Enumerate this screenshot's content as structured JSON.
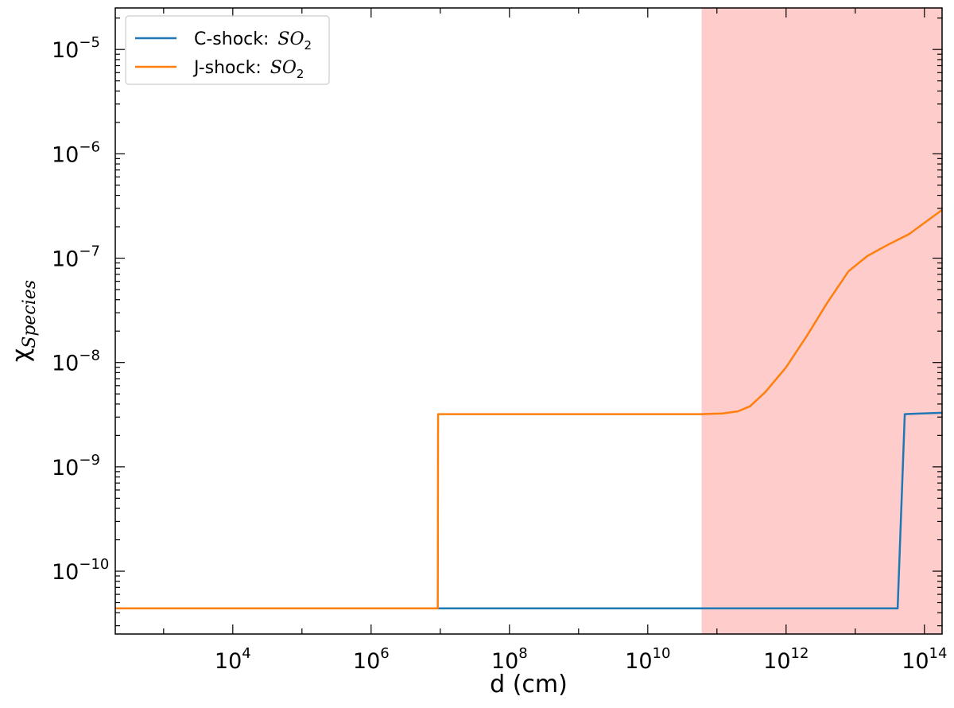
{
  "chart_data": {
    "type": "line",
    "xlabel": "d (cm)",
    "ylabel": {
      "base": "χ",
      "sub": "Species"
    },
    "xscale": "log",
    "yscale": "log",
    "xlim": [
      200,
      180000000000000.0
    ],
    "ylim": [
      2.5e-11,
      2.5e-05
    ],
    "x_ticks": [
      {
        "value": 10000.0,
        "base": "10",
        "exp": "4"
      },
      {
        "value": 1000000.0,
        "base": "10",
        "exp": "6"
      },
      {
        "value": 100000000.0,
        "base": "10",
        "exp": "8"
      },
      {
        "value": 10000000000.0,
        "base": "10",
        "exp": "10"
      },
      {
        "value": 1000000000000.0,
        "base": "10",
        "exp": "12"
      },
      {
        "value": 100000000000000.0,
        "base": "10",
        "exp": "14"
      }
    ],
    "y_ticks": [
      {
        "value": 1e-10,
        "base": "10",
        "exp": "−10"
      },
      {
        "value": 1e-09,
        "base": "10",
        "exp": "−9"
      },
      {
        "value": 1e-08,
        "base": "10",
        "exp": "−8"
      },
      {
        "value": 1e-07,
        "base": "10",
        "exp": "−7"
      },
      {
        "value": 1e-06,
        "base": "10",
        "exp": "−6"
      },
      {
        "value": 1e-05,
        "base": "10",
        "exp": "−5"
      }
    ],
    "shaded_region": {
      "x_start": 60000000000.0,
      "x_end": 180000000000000.0,
      "color": "#ffcccc"
    },
    "legend_position": "upper-left",
    "series": [
      {
        "name": "C-shock: ",
        "name_math": "SO",
        "name_sub": "2",
        "color": "#1f77b4",
        "points": [
          [
            200,
            4.4e-11
          ],
          [
            41000000000000.0,
            4.4e-11
          ],
          [
            52000000000000.0,
            3.2e-09
          ],
          [
            180000000000000.0,
            3.3e-09
          ]
        ]
      },
      {
        "name": "J-shock: ",
        "name_math": "SO",
        "name_sub": "2",
        "color": "#ff7f0e",
        "points": [
          [
            200,
            4.4e-11
          ],
          [
            9200000.0,
            4.4e-11
          ],
          [
            9300000.0,
            3.2e-09
          ],
          [
            60000000000.0,
            3.2e-09
          ],
          [
            120000000000.0,
            3.25e-09
          ],
          [
            200000000000.0,
            3.4e-09
          ],
          [
            300000000000.0,
            3.8e-09
          ],
          [
            500000000000.0,
            5.2e-09
          ],
          [
            1000000000000.0,
            9e-09
          ],
          [
            2000000000000.0,
            1.8e-08
          ],
          [
            4000000000000.0,
            3.8e-08
          ],
          [
            8000000000000.0,
            7.5e-08
          ],
          [
            15000000000000.0,
            1.05e-07
          ],
          [
            30000000000000.0,
            1.35e-07
          ],
          [
            60000000000000.0,
            1.7e-07
          ],
          [
            180000000000000.0,
            2.9e-07
          ]
        ]
      }
    ]
  }
}
